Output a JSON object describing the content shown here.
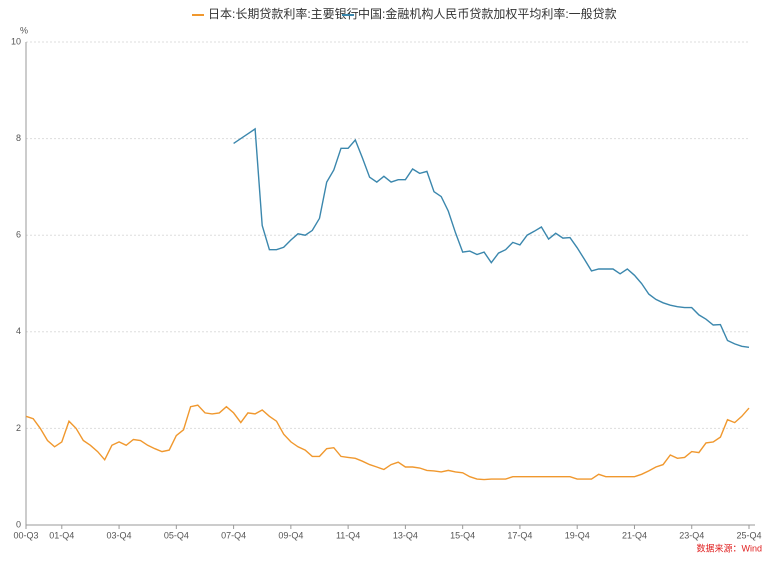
{
  "chart_data": {
    "type": "line",
    "y_unit": "%",
    "source": "数据来源：Wind",
    "categories": [
      "00-Q3",
      null,
      null,
      null,
      null,
      "01-Q4",
      null,
      null,
      null,
      null,
      null,
      null,
      null,
      "03-Q4",
      null,
      null,
      null,
      null,
      null,
      null,
      null,
      "05-Q4",
      null,
      null,
      null,
      null,
      null,
      null,
      null,
      "07-Q4",
      null,
      null,
      null,
      null,
      null,
      null,
      null,
      "09-Q4",
      null,
      null,
      null,
      null,
      null,
      null,
      null,
      "11-Q4",
      null,
      null,
      null,
      null,
      null,
      null,
      null,
      "13-Q4",
      null,
      null,
      null,
      null,
      null,
      null,
      null,
      "15-Q4",
      null,
      null,
      null,
      null,
      null,
      null,
      null,
      "17-Q4",
      null,
      null,
      null,
      null,
      null,
      null,
      null,
      "19-Q4",
      null,
      null,
      null,
      null,
      null,
      null,
      null,
      "21-Q4",
      null,
      null,
      null,
      null,
      null,
      null,
      null,
      "23-Q4",
      null,
      null,
      null,
      null,
      null,
      null,
      null,
      "25-Q4"
    ],
    "series": [
      {
        "name": "日本:长期贷款利率:主要银行",
        "color": "#f0982e",
        "values": [
          2.25,
          2.2,
          2.0,
          1.75,
          1.62,
          1.72,
          2.15,
          2.0,
          1.75,
          1.65,
          1.52,
          1.35,
          1.65,
          1.72,
          1.65,
          1.77,
          1.75,
          1.65,
          1.58,
          1.52,
          1.55,
          1.85,
          1.97,
          2.45,
          2.48,
          2.32,
          2.3,
          2.32,
          2.45,
          2.32,
          2.12,
          2.32,
          2.3,
          2.38,
          2.25,
          2.15,
          1.88,
          1.72,
          1.62,
          1.55,
          1.42,
          1.42,
          1.58,
          1.6,
          1.42,
          1.4,
          1.38,
          1.32,
          1.25,
          1.2,
          1.15,
          1.25,
          1.3,
          1.2,
          1.2,
          1.18,
          1.13,
          1.12,
          1.1,
          1.13,
          1.1,
          1.08,
          1.0,
          0.95,
          0.94,
          0.95,
          0.95,
          0.95,
          1.0,
          1.0,
          1.0,
          1.0,
          1.0,
          1.0,
          1.0,
          1.0,
          1.0,
          0.95,
          0.95,
          0.95,
          1.05,
          1.0,
          1.0,
          1.0,
          1.0,
          1.0,
          1.05,
          1.12,
          1.2,
          1.25,
          1.45,
          1.38,
          1.4,
          1.52,
          1.5,
          1.7,
          1.72,
          1.82,
          2.18,
          2.12,
          2.25,
          2.42
        ]
      },
      {
        "name": "中国:金融机构人民币贷款加权平均利率:一般贷款",
        "color": "#3b87ad",
        "values": [
          null,
          null,
          null,
          null,
          null,
          null,
          null,
          null,
          null,
          null,
          null,
          null,
          null,
          null,
          null,
          null,
          null,
          null,
          null,
          null,
          null,
          null,
          null,
          null,
          null,
          null,
          null,
          null,
          null,
          7.9,
          8.0,
          8.1,
          8.2,
          6.2,
          5.7,
          5.7,
          5.75,
          5.9,
          6.03,
          6.0,
          6.1,
          6.35,
          7.1,
          7.35,
          7.8,
          7.8,
          7.97,
          7.6,
          7.2,
          7.1,
          7.22,
          7.1,
          7.15,
          7.15,
          7.37,
          7.28,
          7.32,
          6.9,
          6.8,
          6.5,
          6.05,
          5.65,
          5.67,
          5.6,
          5.65,
          5.43,
          5.63,
          5.7,
          5.85,
          5.8,
          6.0,
          6.08,
          6.17,
          5.92,
          6.04,
          5.94,
          5.95,
          5.74,
          5.5,
          5.26,
          5.3,
          5.3,
          5.3,
          5.2,
          5.3,
          5.17,
          5.0,
          4.78,
          4.67,
          4.6,
          4.55,
          4.52,
          4.5,
          4.5,
          4.35,
          4.26,
          4.14,
          4.15,
          3.82,
          3.75,
          3.7,
          3.68
        ]
      }
    ],
    "ylim": [
      0,
      10
    ],
    "yticks": [
      0,
      2,
      4,
      6,
      8,
      10
    ],
    "grid": true
  }
}
